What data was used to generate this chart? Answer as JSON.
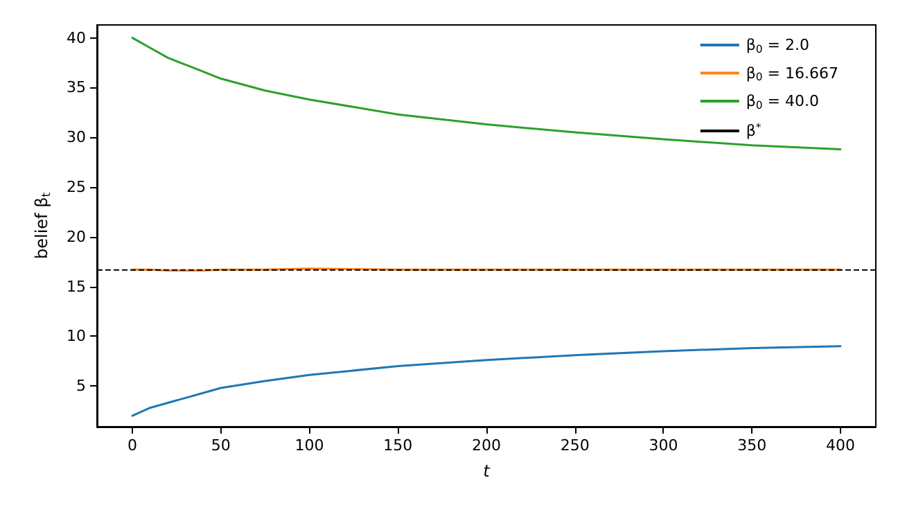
{
  "chart_data": {
    "type": "line",
    "xlabel": "t",
    "ylabel": "belief β$_{t}$",
    "x": [
      0,
      10,
      20,
      30,
      40,
      50,
      75,
      100,
      150,
      200,
      250,
      300,
      350,
      400
    ],
    "series": [
      {
        "name": "β$_{0}$ = 2.0",
        "color": "#1f77b4",
        "values": [
          2.0,
          2.8,
          3.3,
          3.8,
          4.3,
          4.8,
          5.5,
          6.1,
          7.0,
          7.6,
          8.1,
          8.5,
          8.8,
          9.0
        ]
      },
      {
        "name": "β$_{0}$ = 16.667",
        "color": "#ff7f0e",
        "values": [
          16.7,
          16.7,
          16.6,
          16.6,
          16.6,
          16.7,
          16.7,
          16.8,
          16.7,
          16.7,
          16.7,
          16.7,
          16.7,
          16.7
        ]
      },
      {
        "name": "β$_{0}$ = 40.0",
        "color": "#2ca02c",
        "values": [
          40.0,
          39.0,
          38.0,
          37.3,
          36.6,
          35.9,
          34.7,
          33.8,
          32.3,
          31.3,
          30.5,
          29.8,
          29.2,
          28.8
        ]
      }
    ],
    "ref_lines": [
      {
        "axis": "y",
        "value": 16.667,
        "label": "β$^{*}$",
        "color": "#000000",
        "line_style": "dashed"
      }
    ],
    "xlim": [
      -20,
      420
    ],
    "xticks": [
      0,
      50,
      100,
      150,
      200,
      250,
      300,
      350,
      400
    ],
    "ylim": [
      0.9,
      41.3
    ],
    "yticks": [
      5,
      10,
      15,
      20,
      25,
      30,
      35,
      40
    ],
    "grid": false,
    "legend": "top right",
    "line_style": "solid",
    "marker": "none"
  }
}
